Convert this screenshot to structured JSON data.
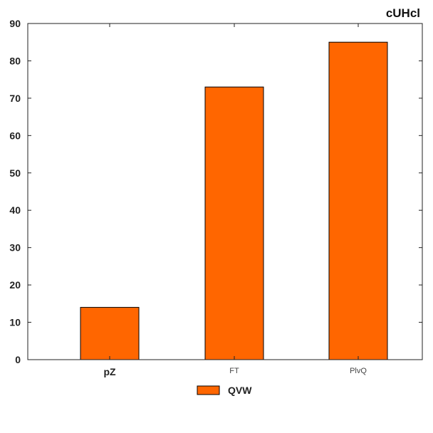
{
  "chart_data": {
    "type": "bar",
    "title": "cUHcl",
    "categories": [
      "pZ",
      "FT",
      "PlvQ"
    ],
    "series": [
      {
        "name": "QVW",
        "values": [
          14,
          73,
          85
        ],
        "color": "#ff6600"
      }
    ],
    "ylim": [
      0,
      90
    ],
    "yticks": [
      0,
      10,
      20,
      30,
      40,
      50,
      60,
      70,
      80,
      90
    ],
    "grid": false,
    "legend_position": "bottom-center"
  }
}
